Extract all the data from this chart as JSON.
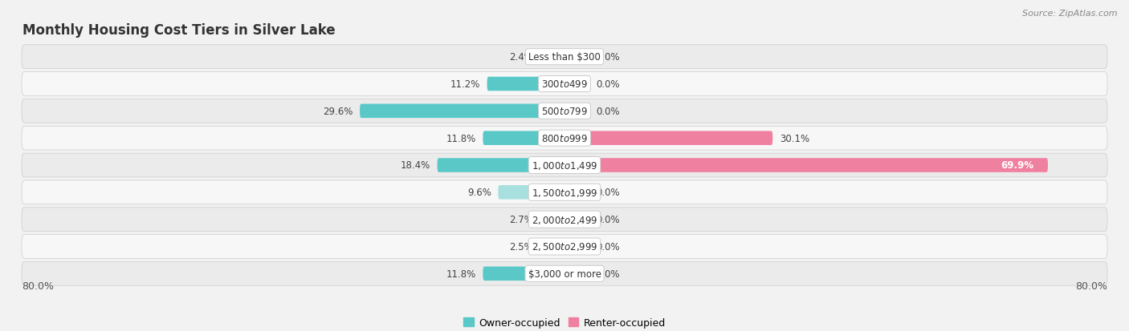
{
  "title": "Monthly Housing Cost Tiers in Silver Lake",
  "source": "Source: ZipAtlas.com",
  "categories": [
    "Less than $300",
    "$300 to $499",
    "$500 to $799",
    "$800 to $999",
    "$1,000 to $1,499",
    "$1,500 to $1,999",
    "$2,000 to $2,499",
    "$2,500 to $2,999",
    "$3,000 or more"
  ],
  "owner_values": [
    2.4,
    11.2,
    29.6,
    11.8,
    18.4,
    9.6,
    2.7,
    2.5,
    11.8
  ],
  "renter_values": [
    0.0,
    0.0,
    0.0,
    30.1,
    69.9,
    0.0,
    0.0,
    0.0,
    0.0
  ],
  "owner_color": "#5bc8c8",
  "renter_color": "#f080a0",
  "owner_color_light": "#a8e0e0",
  "renter_color_light": "#f8b0c8",
  "axis_limit": 80.0,
  "axis_label_left": "80.0%",
  "axis_label_right": "80.0%",
  "bg_color": "#f2f2f2",
  "row_bg_even": "#ebebeb",
  "row_bg_odd": "#f7f7f7",
  "bar_height": 0.52,
  "stub_size": 3.5,
  "label_fontsize": 8.5,
  "pct_fontsize": 8.5,
  "title_fontsize": 12,
  "source_fontsize": 8
}
